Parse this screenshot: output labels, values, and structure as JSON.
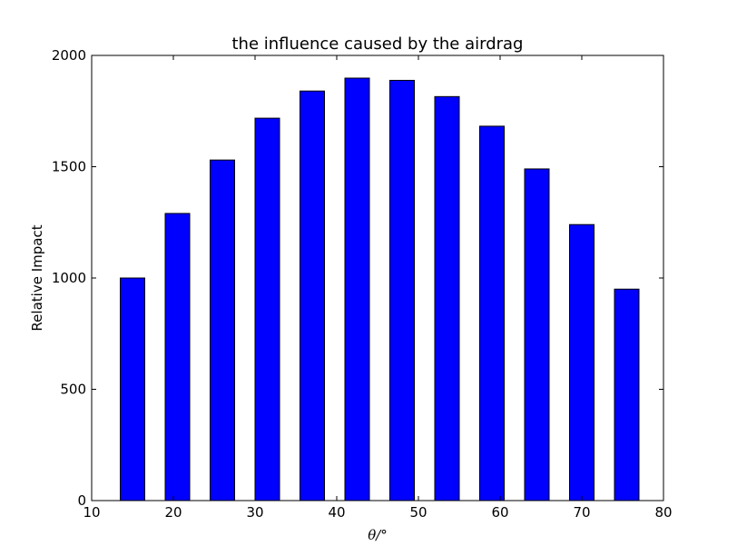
{
  "chart_data": {
    "type": "bar",
    "title": "the influence caused by the airdrag",
    "xlabel": "θ/°",
    "ylabel": "Relative Impact",
    "x": [
      15,
      20.5,
      26,
      31.5,
      37,
      42.5,
      48,
      53.5,
      59,
      64.5,
      70,
      75.5
    ],
    "values": [
      1000,
      1290,
      1530,
      1718,
      1840,
      1898,
      1888,
      1815,
      1682,
      1490,
      1240,
      950
    ],
    "bar_width": 3,
    "xlim": [
      10,
      80
    ],
    "ylim": [
      0,
      2000
    ],
    "xticks": [
      10,
      20,
      30,
      40,
      50,
      60,
      70,
      80
    ],
    "yticks": [
      0,
      500,
      1000,
      1500,
      2000
    ],
    "bar_color": "#0000ff",
    "edge_color": "#000000",
    "grid": false,
    "legend": null
  }
}
